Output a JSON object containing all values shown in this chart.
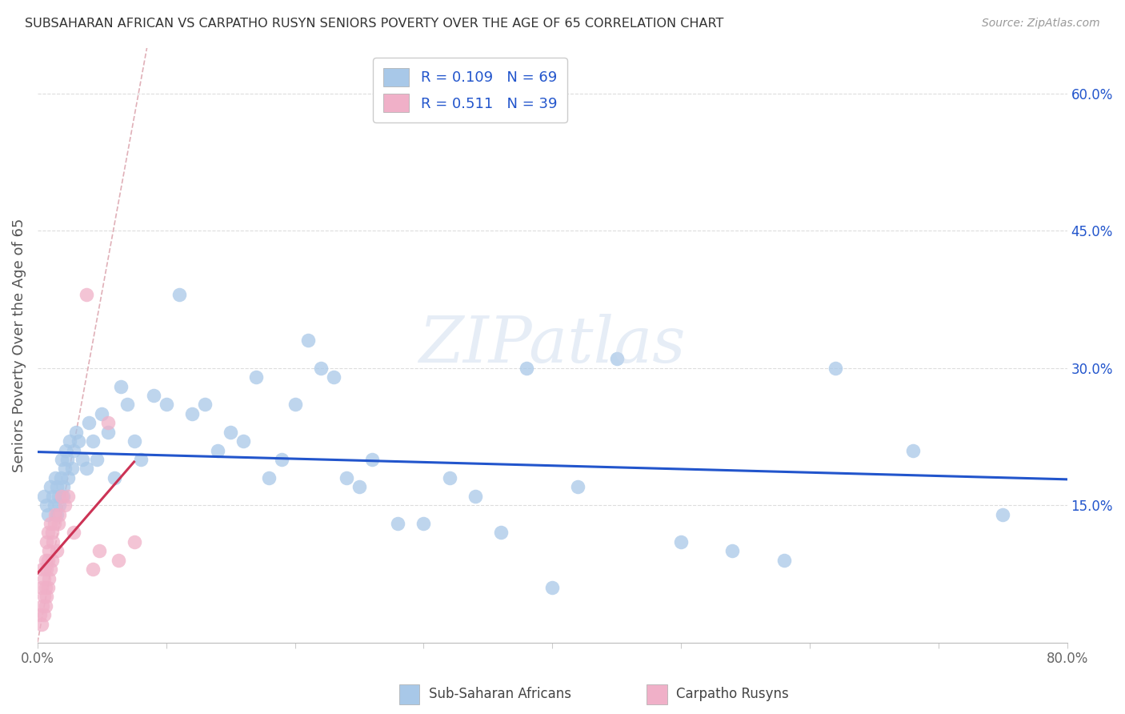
{
  "title": "SUBSAHARAN AFRICAN VS CARPATHO RUSYN SENIORS POVERTY OVER THE AGE OF 65 CORRELATION CHART",
  "source": "Source: ZipAtlas.com",
  "ylabel": "Seniors Poverty Over the Age of 65",
  "xlim": [
    0.0,
    0.8
  ],
  "ylim": [
    0.0,
    0.65
  ],
  "x_ticks": [
    0.0,
    0.1,
    0.2,
    0.3,
    0.4,
    0.5,
    0.6,
    0.7,
    0.8
  ],
  "x_tick_labels": [
    "0.0%",
    "",
    "",
    "",
    "",
    "",
    "",
    "",
    "80.0%"
  ],
  "y_ticks_right": [
    0.15,
    0.3,
    0.45,
    0.6
  ],
  "y_tick_labels_right": [
    "15.0%",
    "30.0%",
    "45.0%",
    "60.0%"
  ],
  "blue_R": 0.109,
  "blue_N": 69,
  "pink_R": 0.511,
  "pink_N": 39,
  "blue_color": "#a8c8e8",
  "pink_color": "#f0b0c8",
  "blue_line_color": "#2255cc",
  "pink_line_color": "#cc3355",
  "diag_line_color": "#e0b0b8",
  "legend_text_color": "#2255cc",
  "watermark": "ZIPatlas",
  "blue_scatter_x": [
    0.005,
    0.007,
    0.008,
    0.01,
    0.012,
    0.013,
    0.014,
    0.015,
    0.015,
    0.016,
    0.017,
    0.018,
    0.019,
    0.02,
    0.02,
    0.021,
    0.022,
    0.023,
    0.024,
    0.025,
    0.027,
    0.028,
    0.03,
    0.032,
    0.035,
    0.038,
    0.04,
    0.043,
    0.046,
    0.05,
    0.055,
    0.06,
    0.065,
    0.07,
    0.075,
    0.08,
    0.09,
    0.1,
    0.11,
    0.12,
    0.13,
    0.14,
    0.15,
    0.16,
    0.17,
    0.18,
    0.19,
    0.2,
    0.21,
    0.22,
    0.23,
    0.24,
    0.25,
    0.26,
    0.28,
    0.3,
    0.32,
    0.34,
    0.36,
    0.38,
    0.4,
    0.42,
    0.45,
    0.5,
    0.54,
    0.58,
    0.62,
    0.68,
    0.75
  ],
  "blue_scatter_y": [
    0.16,
    0.15,
    0.14,
    0.17,
    0.16,
    0.15,
    0.18,
    0.17,
    0.14,
    0.16,
    0.15,
    0.18,
    0.2,
    0.17,
    0.16,
    0.19,
    0.21,
    0.2,
    0.18,
    0.22,
    0.19,
    0.21,
    0.23,
    0.22,
    0.2,
    0.19,
    0.24,
    0.22,
    0.2,
    0.25,
    0.23,
    0.18,
    0.28,
    0.26,
    0.22,
    0.2,
    0.27,
    0.26,
    0.38,
    0.25,
    0.26,
    0.21,
    0.23,
    0.22,
    0.29,
    0.18,
    0.2,
    0.26,
    0.33,
    0.3,
    0.29,
    0.18,
    0.17,
    0.2,
    0.13,
    0.13,
    0.18,
    0.16,
    0.12,
    0.3,
    0.06,
    0.17,
    0.31,
    0.11,
    0.1,
    0.09,
    0.3,
    0.21,
    0.14
  ],
  "pink_scatter_x": [
    0.002,
    0.003,
    0.003,
    0.004,
    0.004,
    0.005,
    0.005,
    0.005,
    0.006,
    0.006,
    0.006,
    0.007,
    0.007,
    0.007,
    0.008,
    0.008,
    0.008,
    0.009,
    0.009,
    0.01,
    0.01,
    0.011,
    0.011,
    0.012,
    0.013,
    0.014,
    0.015,
    0.016,
    0.017,
    0.019,
    0.021,
    0.024,
    0.028,
    0.038,
    0.043,
    0.048,
    0.055,
    0.063,
    0.075
  ],
  "pink_scatter_y": [
    0.03,
    0.06,
    0.02,
    0.04,
    0.08,
    0.05,
    0.03,
    0.07,
    0.04,
    0.09,
    0.06,
    0.05,
    0.08,
    0.11,
    0.06,
    0.09,
    0.12,
    0.07,
    0.1,
    0.08,
    0.13,
    0.09,
    0.12,
    0.11,
    0.13,
    0.14,
    0.1,
    0.13,
    0.14,
    0.16,
    0.15,
    0.16,
    0.12,
    0.38,
    0.08,
    0.1,
    0.24,
    0.09,
    0.11
  ]
}
